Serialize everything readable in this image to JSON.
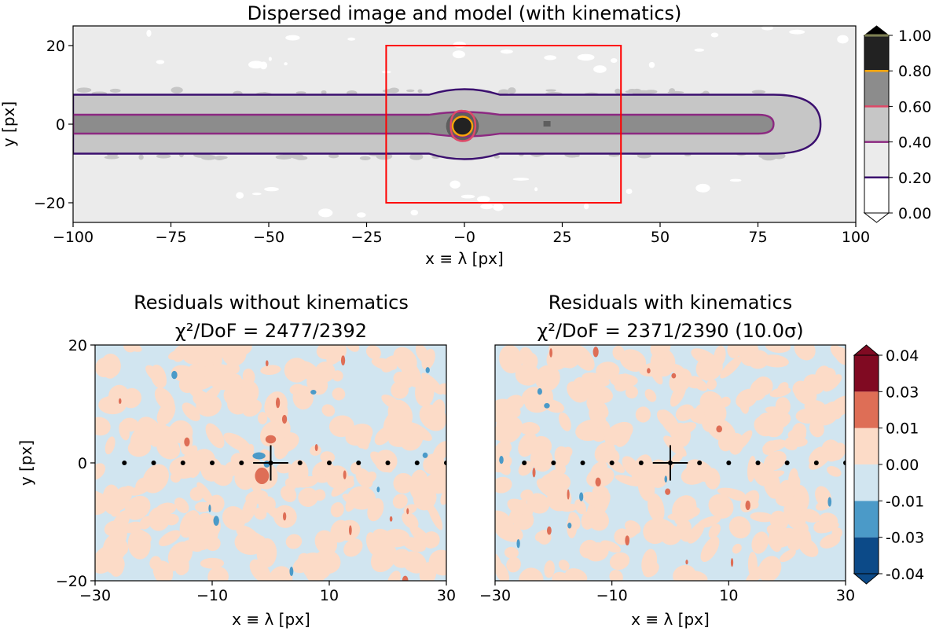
{
  "chart_data": [
    {
      "type": "contour",
      "title": "Dispersed image and model (with kinematics)",
      "xlabel": "x ≡ λ [px]",
      "ylabel": "y [px]",
      "xlim": [
        -100,
        100
      ],
      "ylim": [
        -25,
        25
      ],
      "xticks": [
        -100,
        -75,
        -50,
        -25,
        0,
        25,
        50,
        75,
        100
      ],
      "xtick_labels": [
        "−100",
        "−75",
        "−50",
        "−25",
        "−0",
        "25",
        "50",
        "75",
        "100"
      ],
      "yticks": [
        -20,
        0,
        20
      ],
      "ytick_labels": [
        "−20",
        "0",
        "20"
      ],
      "image_fill_colors": [
        "#ffffff",
        "#ebebeb",
        "#c6c6c6",
        "#8c8c8c",
        "#5e5e5e",
        "#222222"
      ],
      "colorbar": {
        "levels": [
          0.0,
          0.2,
          0.4,
          0.6,
          0.8,
          1.0
        ],
        "tick_labels": [
          "0.00",
          "0.20",
          "0.40",
          "0.60",
          "0.80",
          "1.00"
        ],
        "band_colors": [
          "#ffffff",
          "#ebebeb",
          "#c6c6c6",
          "#8c8c8c",
          "#5e5e5e",
          "#222222"
        ],
        "line_colors": [
          "#3b0f6f",
          "#8c2981",
          "#de4968",
          "#fca50a",
          "#fcffa4"
        ],
        "extend": "both"
      },
      "model_contours": [
        {
          "level": 0.2,
          "color": "#3b0f6f",
          "halfwidth": 7.5,
          "x_start": -100,
          "x_tip": 91
        },
        {
          "level": 0.4,
          "color": "#8c2981",
          "halfwidth": 2.4,
          "x_start": -100,
          "x_tip": 79
        },
        {
          "level": 0.6,
          "color": "#de4968",
          "center": [
            -0.5,
            -0.5
          ],
          "radius": [
            3.5,
            3.8
          ]
        },
        {
          "level": 0.8,
          "color": "#fca50a",
          "center": [
            -0.5,
            -0.5
          ],
          "radius": [
            2.1,
            2.4
          ]
        }
      ],
      "bulge_x": [
        0,
        21
      ],
      "box": {
        "x": [
          -20,
          40
        ],
        "y": [
          -20,
          20
        ],
        "color": "#ff0000"
      }
    },
    {
      "type": "contour",
      "title": "Residuals without kinematics",
      "subtitle": "χ²/DoF = 2477/2392",
      "xlabel": "x ≡ λ [px]",
      "ylabel": "y [px]",
      "xlim": [
        -30,
        30
      ],
      "ylim": [
        -20,
        20
      ],
      "xticks": [
        -30,
        -10,
        10,
        30
      ],
      "xtick_labels": [
        "−30",
        "−10",
        "10",
        "30"
      ],
      "yticks": [
        -20,
        0,
        20
      ],
      "ytick_labels": [
        "−20",
        "0",
        "20"
      ],
      "dots_x": [
        -25,
        -20,
        -15,
        -10,
        -5,
        0,
        5,
        10,
        15,
        20,
        25,
        30
      ],
      "cross": [
        0,
        0
      ],
      "blobs": [
        {
          "x": -2.0,
          "y": 1.2,
          "rx": 1.1,
          "ry": 0.6,
          "color": "#4b9ac8"
        },
        {
          "x": -1.5,
          "y": -2.2,
          "rx": 1.2,
          "ry": 1.4,
          "color": "#de6e56"
        },
        {
          "x": 0.0,
          "y": 4.0,
          "rx": 0.9,
          "ry": 0.7,
          "color": "#de6e56"
        }
      ]
    },
    {
      "type": "contour",
      "title": "Residuals with kinematics",
      "subtitle": "χ²/DoF = 2371/2390 (10.0σ)",
      "xlabel": "x ≡ λ [px]",
      "xlim": [
        -30,
        30
      ],
      "ylim": [
        -20,
        20
      ],
      "xticks": [
        -30,
        -10,
        10,
        30
      ],
      "xtick_labels": [
        "−30",
        "−10",
        "10",
        "30"
      ],
      "dots_x": [
        -25,
        -20,
        -15,
        -10,
        -5,
        0,
        5,
        10,
        15,
        20,
        25,
        30
      ],
      "cross": [
        0,
        0
      ]
    }
  ],
  "residual_colorbar": {
    "levels": [
      -0.04,
      -0.03,
      -0.01,
      0.0,
      0.01,
      0.03,
      0.04
    ],
    "tick_labels": [
      "-0.04",
      "-0.03",
      "-0.01",
      "0.00",
      "0.01",
      "0.03",
      "0.04"
    ],
    "band_colors": [
      "#0c4a88",
      "#4b9ac8",
      "#d1e5f0",
      "#fcdbc7",
      "#de6e56",
      "#800a22"
    ],
    "extend": "both"
  }
}
